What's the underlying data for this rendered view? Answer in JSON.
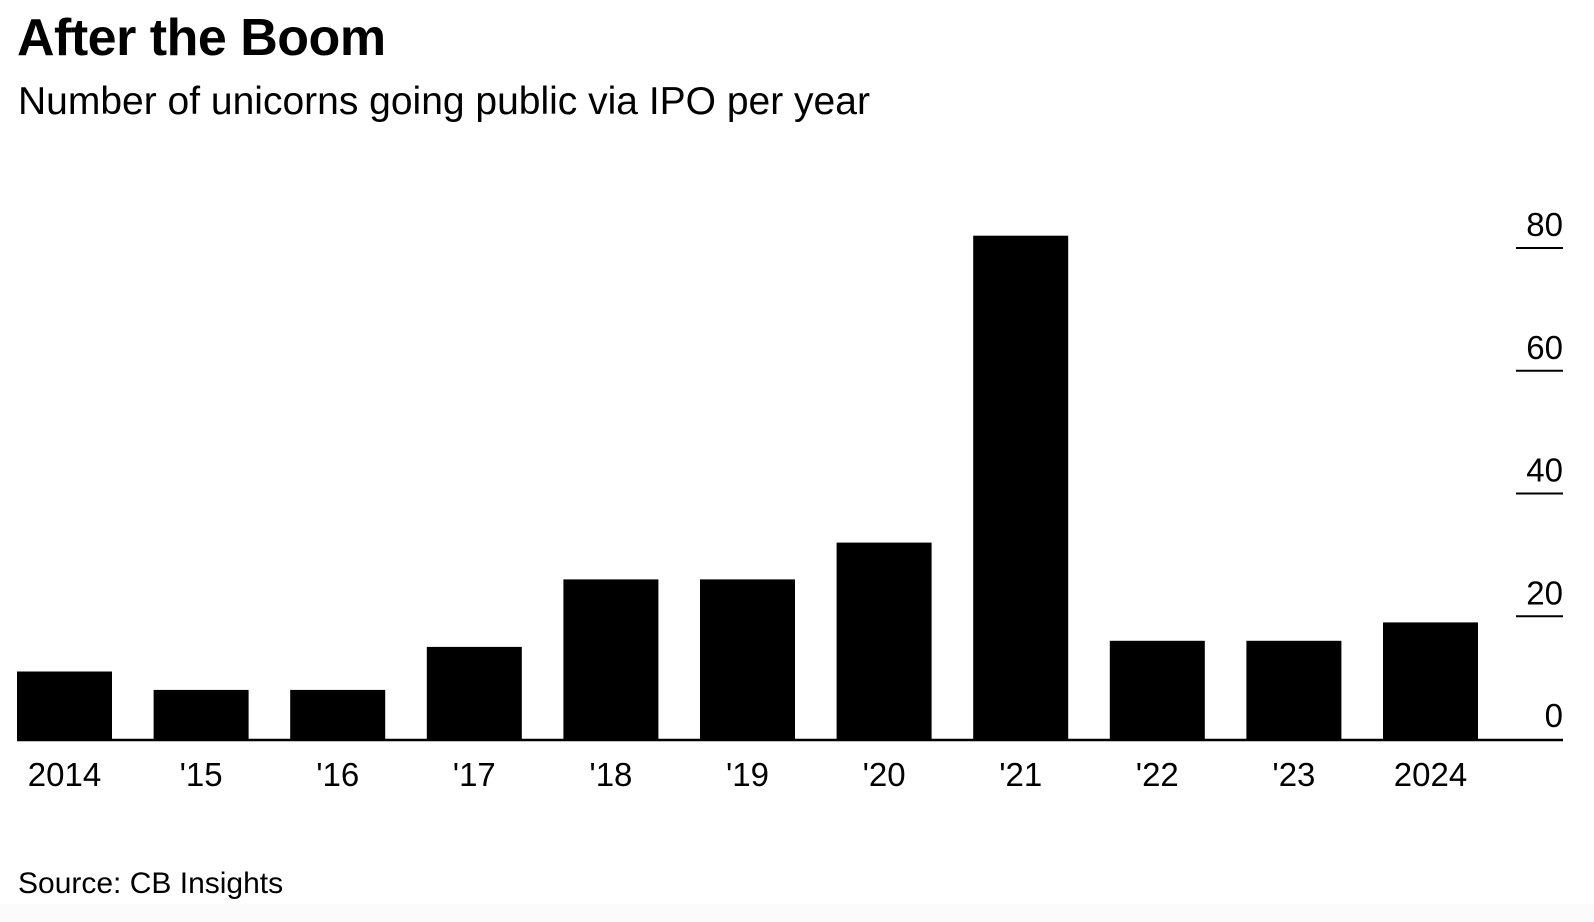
{
  "chart_data": {
    "type": "bar",
    "title": "After the Boom",
    "subtitle": "Number of unicorns going public via IPO per year",
    "categories": [
      "2014",
      "'15",
      "'16",
      "'17",
      "'18",
      "'19",
      "'20",
      "'21",
      "'22",
      "'23",
      "2024"
    ],
    "values": [
      11,
      8,
      8,
      15,
      26,
      26,
      32,
      82,
      16,
      16,
      19
    ],
    "xlabel": "",
    "ylabel": "",
    "ylim": [
      0,
      80
    ],
    "yticks": [
      0,
      20,
      40,
      60,
      80
    ],
    "y_axis_position": "right",
    "grid": false,
    "bar_color": "#000000",
    "source": "Source: CB Insights"
  }
}
